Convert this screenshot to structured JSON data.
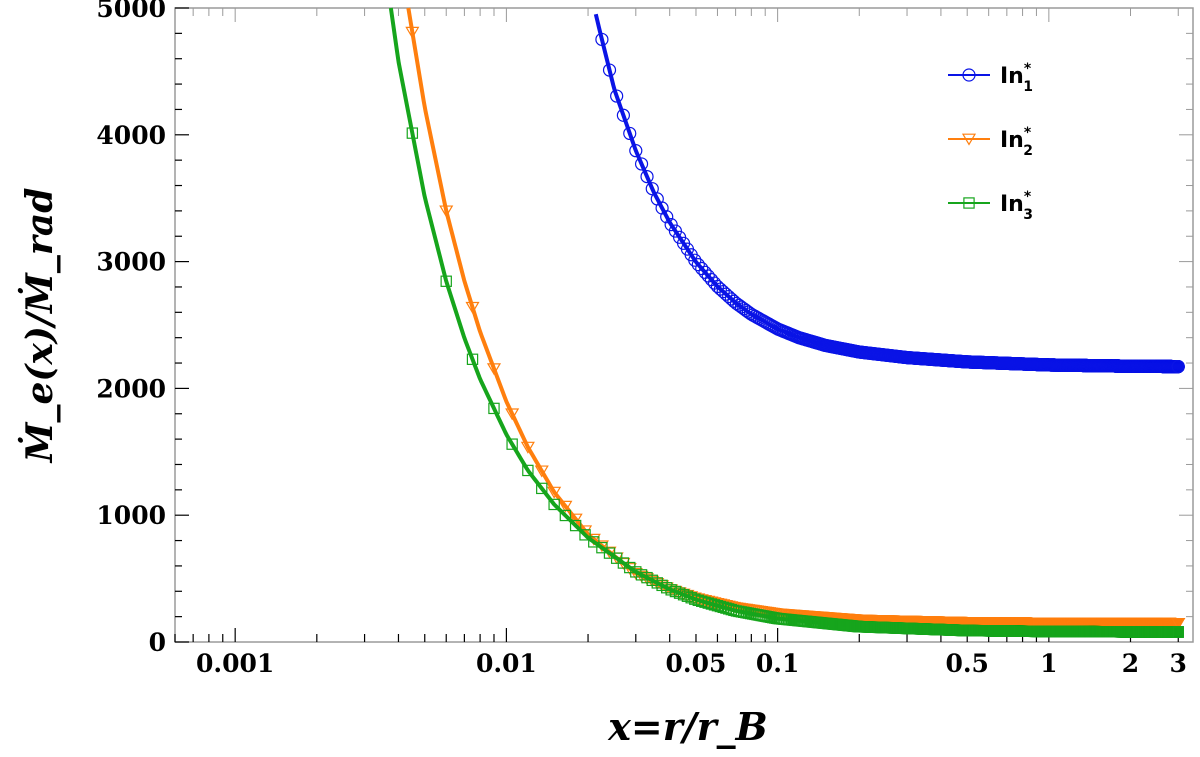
{
  "chart_data": {
    "type": "line",
    "title": "",
    "xlabel": "x=r/r_B",
    "ylabel": "Ṁ_e(x)/Ṁ_rad",
    "x_scale": "log",
    "xlim": [
      0.0006,
      3.4
    ],
    "ylim": [
      0,
      5000
    ],
    "grid": false,
    "legend_position": "top-right",
    "x_ticks": [
      {
        "value": 0.001,
        "label": "0.001"
      },
      {
        "value": 0.01,
        "label": "0.01"
      },
      {
        "value": 0.05,
        "label": "0.05"
      },
      {
        "value": 0.1,
        "label": "0.1"
      },
      {
        "value": 0.5,
        "label": "0.5"
      },
      {
        "value": 1,
        "label": "1"
      },
      {
        "value": 2,
        "label": "2"
      },
      {
        "value": 3,
        "label": "3"
      }
    ],
    "y_ticks": [
      {
        "value": 0,
        "label": "0"
      },
      {
        "value": 1000,
        "label": "1000"
      },
      {
        "value": 2000,
        "label": "2000"
      },
      {
        "value": 3000,
        "label": "3000"
      },
      {
        "value": 4000,
        "label": "4000"
      },
      {
        "value": 5000,
        "label": "5000"
      }
    ],
    "series": [
      {
        "name": "In",
        "subscript": "1",
        "superscript": "*",
        "color": "#0a14e6",
        "marker": "circle",
        "line_width": 4,
        "x": [
          0.0211,
          0.022,
          0.025,
          0.03,
          0.035,
          0.04,
          0.05,
          0.06,
          0.07,
          0.08,
          0.1,
          0.12,
          0.15,
          0.2,
          0.3,
          0.5,
          1,
          2,
          3
        ],
        "y": [
          5000,
          4836,
          4358,
          3875,
          3544,
          3309,
          2997,
          2804,
          2675,
          2585,
          2469,
          2400,
          2339,
          2287,
          2243,
          2209,
          2185,
          2175,
          2172
        ]
      },
      {
        "name": "In",
        "subscript": "2",
        "superscript": "*",
        "color": "#ff7f0e",
        "marker": "triangle-down",
        "line_width": 4,
        "x": [
          0.00435,
          0.005,
          0.006,
          0.007,
          0.008,
          0.01,
          0.012,
          0.015,
          0.02,
          0.03,
          0.04,
          0.05,
          0.07,
          0.1,
          0.2,
          0.5,
          1,
          2,
          3
        ],
        "y": [
          5000,
          4216,
          3400,
          2847,
          2446,
          1896,
          1537,
          1182,
          848,
          541,
          416,
          345,
          271,
          222,
          173,
          154,
          150,
          148,
          147
        ]
      },
      {
        "name": "In",
        "subscript": "3",
        "superscript": "*",
        "color": "#16a51c",
        "marker": "square",
        "line_width": 4,
        "x": [
          0.00375,
          0.004,
          0.005,
          0.006,
          0.007,
          0.008,
          0.01,
          0.012,
          0.015,
          0.02,
          0.03,
          0.04,
          0.05,
          0.07,
          0.1,
          0.2,
          0.5,
          1,
          2,
          3
        ],
        "y": [
          5000,
          4578,
          3508,
          2845,
          2397,
          2073,
          1636,
          1353,
          1085,
          822,
          553,
          416,
          334,
          246,
          185,
          121,
          90,
          83,
          80,
          79
        ]
      }
    ]
  }
}
